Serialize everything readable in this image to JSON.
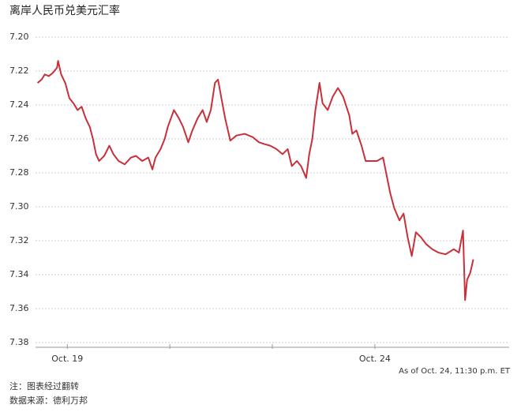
{
  "chart_data": {
    "type": "line",
    "title": "离岸人民币兑美元汇率",
    "x": [
      -0.29,
      -0.25,
      -0.22,
      -0.18,
      -0.14,
      -0.1,
      -0.09,
      -0.06,
      -0.02,
      0.02,
      0.06,
      0.1,
      0.14,
      0.18,
      0.22,
      0.25,
      0.28,
      0.31,
      0.36,
      0.41,
      0.45,
      0.5,
      0.56,
      0.62,
      0.67,
      0.73,
      0.79,
      0.83,
      0.86,
      0.91,
      0.95,
      0.98,
      1.04,
      1.09,
      1.13,
      1.18,
      1.22,
      1.27,
      1.32,
      1.36,
      1.4,
      1.44,
      1.47,
      1.5,
      1.54,
      1.59,
      1.65,
      1.73,
      1.81,
      1.87,
      1.92,
      1.98,
      2.04,
      2.1,
      2.15,
      2.19,
      2.24,
      2.28,
      2.33,
      2.36,
      2.39,
      2.42,
      2.46,
      2.49,
      2.54,
      2.59,
      2.64,
      2.69,
      2.75,
      2.78,
      2.82,
      2.87,
      2.91,
      2.96,
      3.02,
      3.08,
      3.12,
      3.15,
      3.19,
      3.24,
      3.28,
      3.32,
      3.36,
      3.4,
      3.45,
      3.5,
      3.56,
      3.62,
      3.69,
      3.77,
      3.82,
      3.86,
      3.88,
      3.9,
      3.93,
      3.96
    ],
    "values": [
      7.227,
      7.225,
      7.222,
      7.223,
      7.221,
      7.218,
      7.214,
      7.222,
      7.227,
      7.236,
      7.239,
      7.243,
      7.241,
      7.248,
      7.253,
      7.26,
      7.269,
      7.273,
      7.27,
      7.264,
      7.269,
      7.273,
      7.275,
      7.271,
      7.27,
      7.273,
      7.271,
      7.278,
      7.271,
      7.266,
      7.26,
      7.253,
      7.243,
      7.248,
      7.253,
      7.262,
      7.255,
      7.248,
      7.243,
      7.25,
      7.243,
      7.227,
      7.225,
      7.235,
      7.248,
      7.261,
      7.258,
      7.257,
      7.259,
      7.262,
      7.263,
      7.264,
      7.266,
      7.269,
      7.266,
      7.276,
      7.273,
      7.276,
      7.283,
      7.269,
      7.26,
      7.243,
      7.227,
      7.239,
      7.243,
      7.235,
      7.23,
      7.235,
      7.246,
      7.257,
      7.255,
      7.264,
      7.273,
      7.273,
      7.273,
      7.271,
      7.283,
      7.292,
      7.301,
      7.308,
      7.304,
      7.318,
      7.329,
      7.315,
      7.318,
      7.322,
      7.325,
      7.327,
      7.328,
      7.325,
      7.327,
      7.314,
      7.355,
      7.343,
      7.339,
      7.331
    ],
    "color": "#c8303a",
    "xlim": [
      -0.31,
      4.31
    ],
    "xticks": [
      {
        "value": 0,
        "label": "Oct. 19"
      },
      {
        "value": 1,
        "label": null
      },
      {
        "value": 2,
        "label": null
      },
      {
        "value": 3,
        "label": "Oct. 24"
      }
    ],
    "ylim": [
      7.2,
      7.38
    ],
    "y_inverted": true,
    "yticks": [
      {
        "value": 7.2,
        "label": "7.20"
      },
      {
        "value": 7.22,
        "label": "7.22"
      },
      {
        "value": 7.24,
        "label": "7.24"
      },
      {
        "value": 7.26,
        "label": "7.26"
      },
      {
        "value": 7.28,
        "label": "7.28"
      },
      {
        "value": 7.3,
        "label": "7.30"
      },
      {
        "value": 7.32,
        "label": "7.32"
      },
      {
        "value": 7.34,
        "label": "7.34"
      },
      {
        "value": 7.36,
        "label": "7.36"
      },
      {
        "value": 7.38,
        "label": "7.38"
      }
    ],
    "grid": true,
    "annotation": "As of Oct. 24, 11:30 p.m. ET",
    "notes": [
      "注：图表经过翻转",
      "数据来源：德利万邦"
    ]
  }
}
